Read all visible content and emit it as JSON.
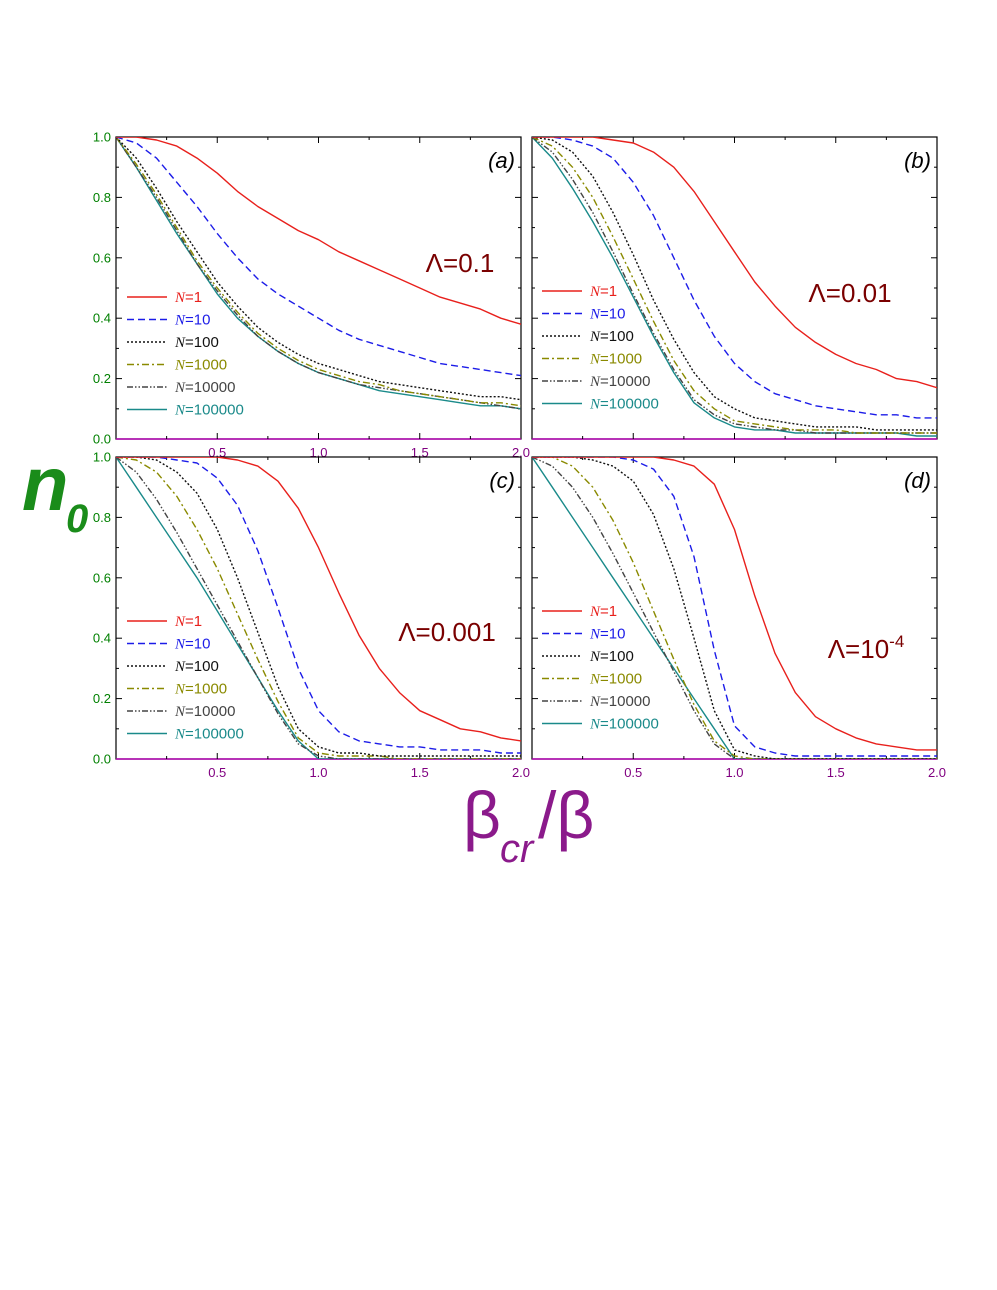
{
  "figure": {
    "y_label": {
      "main": "n",
      "sub": "0"
    },
    "x_label": {
      "main": "β",
      "sub": "cr",
      "tail": "/β"
    }
  },
  "colors": {
    "y_label": "#1a8c1a",
    "x_label": "#8b1a8b",
    "y_ticks": "#008000",
    "x_ticks": "#800080",
    "lambda_text": "#7a0000"
  },
  "legend_entries": [
    {
      "prefix": "N",
      "suffix": "=1",
      "color": "#e8201c",
      "dash": ""
    },
    {
      "prefix": "N",
      "suffix": "=10",
      "color": "#1c1ce8",
      "dash": "7,4"
    },
    {
      "prefix": "N",
      "suffix": "=100",
      "color": "#111111",
      "dash": "2,2"
    },
    {
      "prefix": "N",
      "suffix": "=1000",
      "color": "#8a8a00",
      "dash": "7,3,2,3"
    },
    {
      "prefix": "N",
      "suffix": "=10000",
      "color": "#444444",
      "dash": "6,2,1.5,2,1.5,2"
    },
    {
      "prefix": "N",
      "suffix": "=100000",
      "color": "#1a8a8a",
      "dash": ""
    }
  ],
  "chart_data": [
    {
      "type": "line",
      "panel_label": "(a)",
      "lambda": {
        "prefix": "Λ=",
        "value": "0.1",
        "sup": ""
      },
      "xlim": [
        0,
        2.0
      ],
      "ylim": [
        0,
        1.0
      ],
      "x_ticks": [
        "0.5",
        "1.0",
        "1.5",
        "2.0"
      ],
      "y_ticks": [
        "0.0",
        "0.2",
        "0.4",
        "0.6",
        "0.8",
        "1.0"
      ],
      "x": [
        0,
        0.1,
        0.2,
        0.3,
        0.4,
        0.5,
        0.6,
        0.7,
        0.8,
        0.9,
        1.0,
        1.1,
        1.2,
        1.3,
        1.4,
        1.5,
        1.6,
        1.7,
        1.8,
        1.9,
        2.0
      ],
      "series": [
        {
          "name": "N=1",
          "values": [
            1.0,
            1.0,
            0.99,
            0.97,
            0.93,
            0.88,
            0.82,
            0.77,
            0.73,
            0.69,
            0.66,
            0.62,
            0.59,
            0.56,
            0.53,
            0.5,
            0.47,
            0.45,
            0.43,
            0.4,
            0.38
          ]
        },
        {
          "name": "N=10",
          "values": [
            1.0,
            0.98,
            0.93,
            0.85,
            0.77,
            0.68,
            0.6,
            0.53,
            0.48,
            0.44,
            0.4,
            0.36,
            0.33,
            0.31,
            0.29,
            0.27,
            0.25,
            0.24,
            0.23,
            0.22,
            0.21
          ]
        },
        {
          "name": "N=100",
          "values": [
            1.0,
            0.93,
            0.83,
            0.72,
            0.62,
            0.52,
            0.44,
            0.37,
            0.32,
            0.28,
            0.25,
            0.23,
            0.21,
            0.19,
            0.18,
            0.17,
            0.16,
            0.15,
            0.14,
            0.14,
            0.13
          ]
        },
        {
          "name": "N=1000",
          "values": [
            1.0,
            0.91,
            0.81,
            0.7,
            0.59,
            0.5,
            0.42,
            0.35,
            0.3,
            0.26,
            0.23,
            0.21,
            0.19,
            0.18,
            0.16,
            0.15,
            0.14,
            0.13,
            0.12,
            0.12,
            0.11
          ]
        },
        {
          "name": "N=10000",
          "values": [
            1.0,
            0.9,
            0.8,
            0.69,
            0.58,
            0.49,
            0.41,
            0.34,
            0.29,
            0.25,
            0.22,
            0.2,
            0.18,
            0.17,
            0.16,
            0.15,
            0.14,
            0.13,
            0.12,
            0.11,
            0.1
          ]
        },
        {
          "name": "N=100000",
          "values": [
            1.0,
            0.9,
            0.79,
            0.68,
            0.58,
            0.48,
            0.4,
            0.34,
            0.29,
            0.25,
            0.22,
            0.2,
            0.18,
            0.16,
            0.15,
            0.14,
            0.13,
            0.12,
            0.11,
            0.11,
            0.1
          ]
        }
      ]
    },
    {
      "type": "line",
      "panel_label": "(b)",
      "lambda": {
        "prefix": "Λ=",
        "value": "0.01",
        "sup": ""
      },
      "xlim": [
        0,
        2.0
      ],
      "ylim": [
        0,
        1.0
      ],
      "x_ticks": [],
      "y_ticks": [],
      "x": [
        0,
        0.1,
        0.2,
        0.3,
        0.4,
        0.5,
        0.6,
        0.7,
        0.8,
        0.9,
        1.0,
        1.1,
        1.2,
        1.3,
        1.4,
        1.5,
        1.6,
        1.7,
        1.8,
        1.9,
        2.0
      ],
      "series": [
        {
          "name": "N=1",
          "values": [
            1.0,
            1.0,
            1.0,
            1.0,
            0.99,
            0.98,
            0.95,
            0.9,
            0.82,
            0.72,
            0.62,
            0.52,
            0.44,
            0.37,
            0.32,
            0.28,
            0.25,
            0.23,
            0.2,
            0.19,
            0.17
          ]
        },
        {
          "name": "N=10",
          "values": [
            1.0,
            1.0,
            0.99,
            0.97,
            0.93,
            0.85,
            0.74,
            0.6,
            0.46,
            0.34,
            0.25,
            0.19,
            0.15,
            0.13,
            0.11,
            0.1,
            0.09,
            0.08,
            0.08,
            0.07,
            0.07
          ]
        },
        {
          "name": "N=100",
          "values": [
            1.0,
            0.99,
            0.95,
            0.87,
            0.75,
            0.61,
            0.46,
            0.33,
            0.22,
            0.14,
            0.1,
            0.07,
            0.06,
            0.05,
            0.04,
            0.04,
            0.04,
            0.03,
            0.03,
            0.03,
            0.03
          ]
        },
        {
          "name": "N=1000",
          "values": [
            1.0,
            0.97,
            0.9,
            0.8,
            0.67,
            0.53,
            0.39,
            0.26,
            0.16,
            0.1,
            0.06,
            0.05,
            0.04,
            0.03,
            0.03,
            0.03,
            0.02,
            0.02,
            0.02,
            0.02,
            0.02
          ]
        },
        {
          "name": "N=10000",
          "values": [
            1.0,
            0.95,
            0.86,
            0.75,
            0.62,
            0.48,
            0.35,
            0.23,
            0.13,
            0.08,
            0.05,
            0.04,
            0.03,
            0.03,
            0.02,
            0.02,
            0.02,
            0.02,
            0.02,
            0.02,
            0.02
          ]
        },
        {
          "name": "N=100000",
          "values": [
            1.0,
            0.93,
            0.83,
            0.72,
            0.6,
            0.47,
            0.34,
            0.22,
            0.12,
            0.07,
            0.04,
            0.03,
            0.03,
            0.02,
            0.02,
            0.02,
            0.02,
            0.02,
            0.02,
            0.01,
            0.01
          ]
        }
      ]
    },
    {
      "type": "line",
      "panel_label": "(c)",
      "lambda": {
        "prefix": "Λ=",
        "value": "0.001",
        "sup": ""
      },
      "xlim": [
        0,
        2.0
      ],
      "ylim": [
        0,
        1.0
      ],
      "x_ticks": [
        "0.5",
        "1.0",
        "1.5",
        "2.0"
      ],
      "y_ticks": [
        "0.0",
        "0.2",
        "0.4",
        "0.6",
        "0.8",
        "1.0"
      ],
      "x": [
        0,
        0.1,
        0.2,
        0.3,
        0.4,
        0.5,
        0.6,
        0.7,
        0.8,
        0.9,
        1.0,
        1.1,
        1.2,
        1.3,
        1.4,
        1.5,
        1.6,
        1.7,
        1.8,
        1.9,
        2.0
      ],
      "series": [
        {
          "name": "N=1",
          "values": [
            1.0,
            1.0,
            1.0,
            1.0,
            1.0,
            1.0,
            0.99,
            0.97,
            0.92,
            0.83,
            0.7,
            0.55,
            0.41,
            0.3,
            0.22,
            0.16,
            0.13,
            0.1,
            0.09,
            0.07,
            0.06
          ]
        },
        {
          "name": "N=10",
          "values": [
            1.0,
            1.0,
            1.0,
            0.99,
            0.98,
            0.93,
            0.84,
            0.69,
            0.5,
            0.3,
            0.16,
            0.09,
            0.06,
            0.05,
            0.04,
            0.04,
            0.03,
            0.03,
            0.03,
            0.02,
            0.02
          ]
        },
        {
          "name": "N=100",
          "values": [
            1.0,
            1.0,
            0.99,
            0.95,
            0.88,
            0.76,
            0.6,
            0.42,
            0.24,
            0.1,
            0.04,
            0.02,
            0.02,
            0.01,
            0.01,
            0.01,
            0.01,
            0.01,
            0.01,
            0.01,
            0.01
          ]
        },
        {
          "name": "N=1000",
          "values": [
            1.0,
            0.99,
            0.95,
            0.87,
            0.76,
            0.63,
            0.48,
            0.33,
            0.19,
            0.07,
            0.02,
            0.01,
            0.01,
            0.01,
            0.0,
            0.0,
            0.0,
            0.0,
            0.0,
            0.0,
            0.0
          ]
        },
        {
          "name": "N=10000",
          "values": [
            1.0,
            0.95,
            0.86,
            0.75,
            0.63,
            0.51,
            0.39,
            0.27,
            0.15,
            0.05,
            0.01,
            0.0,
            0.0,
            0.0,
            0.0,
            0.0,
            0.0,
            0.0,
            0.0,
            0.0,
            0.0
          ]
        },
        {
          "name": "N=100000",
          "values": [
            1.0,
            0.9,
            0.8,
            0.7,
            0.6,
            0.49,
            0.38,
            0.27,
            0.16,
            0.06,
            0.0,
            0.0,
            0.0,
            0.0,
            0.0,
            0.0,
            0.0,
            0.0,
            0.0,
            0.0,
            0.0
          ]
        }
      ]
    },
    {
      "type": "line",
      "panel_label": "(d)",
      "lambda": {
        "prefix": "Λ=",
        "value": "10",
        "sup": "-4"
      },
      "xlim": [
        0,
        2.0
      ],
      "ylim": [
        0,
        1.0
      ],
      "x_ticks": [
        "0.5",
        "1.0",
        "1.5",
        "2.0"
      ],
      "y_ticks": [],
      "x": [
        0,
        0.1,
        0.2,
        0.3,
        0.4,
        0.5,
        0.6,
        0.7,
        0.8,
        0.9,
        1.0,
        1.1,
        1.2,
        1.3,
        1.4,
        1.5,
        1.6,
        1.7,
        1.8,
        1.9,
        2.0
      ],
      "series": [
        {
          "name": "N=1",
          "values": [
            1.0,
            1.0,
            1.0,
            1.0,
            1.0,
            1.0,
            1.0,
            0.99,
            0.97,
            0.91,
            0.76,
            0.54,
            0.35,
            0.22,
            0.14,
            0.1,
            0.07,
            0.05,
            0.04,
            0.03,
            0.03
          ]
        },
        {
          "name": "N=10",
          "values": [
            1.0,
            1.0,
            1.0,
            1.0,
            1.0,
            0.99,
            0.96,
            0.87,
            0.67,
            0.36,
            0.11,
            0.04,
            0.02,
            0.01,
            0.01,
            0.01,
            0.01,
            0.01,
            0.01,
            0.01,
            0.01
          ]
        },
        {
          "name": "N=100",
          "values": [
            1.0,
            1.0,
            1.0,
            0.99,
            0.97,
            0.92,
            0.81,
            0.63,
            0.4,
            0.16,
            0.03,
            0.01,
            0.0,
            0.0,
            0.0,
            0.0,
            0.0,
            0.0,
            0.0,
            0.0,
            0.0
          ]
        },
        {
          "name": "N=1000",
          "values": [
            1.0,
            1.0,
            0.97,
            0.9,
            0.79,
            0.65,
            0.49,
            0.33,
            0.18,
            0.06,
            0.01,
            0.0,
            0.0,
            0.0,
            0.0,
            0.0,
            0.0,
            0.0,
            0.0,
            0.0,
            0.0
          ]
        },
        {
          "name": "N=10000",
          "values": [
            1.0,
            0.97,
            0.9,
            0.8,
            0.68,
            0.55,
            0.42,
            0.29,
            0.16,
            0.05,
            0.0,
            0.0,
            0.0,
            0.0,
            0.0,
            0.0,
            0.0,
            0.0,
            0.0,
            0.0,
            0.0
          ]
        },
        {
          "name": "N=100000",
          "values": [
            1.0,
            0.9,
            0.8,
            0.7,
            0.6,
            0.5,
            0.4,
            0.3,
            0.2,
            0.1,
            0.0,
            0.0,
            0.0,
            0.0,
            0.0,
            0.0,
            0.0,
            0.0,
            0.0,
            0.0,
            0.0
          ]
        }
      ]
    }
  ]
}
